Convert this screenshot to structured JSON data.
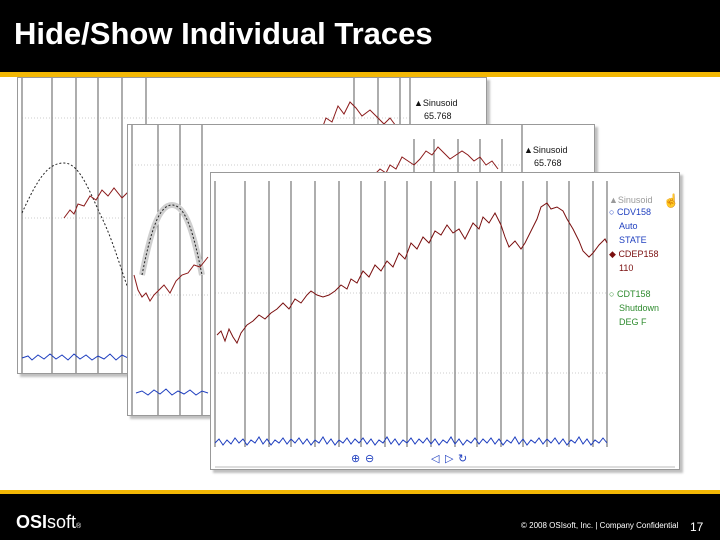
{
  "slide": {
    "title": "Hide/Show Individual Traces",
    "page_number": "17",
    "copyright": "© 2008 OSIsoft, Inc. | Company Confidential",
    "logo": {
      "bold": "OSI",
      "rest": "soft",
      "mark": "®"
    }
  },
  "colors": {
    "accent": "#f2b705",
    "title_bar": "#000000",
    "sinusoid_trace": "#8b1a1a",
    "cdv158_trace": "#1f3fbf",
    "cdep158_trace": "#7a0f0f",
    "cdt158_trace": "#2e8b2e",
    "hidden_trace": "#222222"
  },
  "back_panel": {
    "legend_sinusoid_label": "Sinusoid",
    "legend_sinusoid_value": "65.768"
  },
  "middle_panel": {
    "legend_sinusoid_label": "Sinusoid",
    "legend_sinusoid_value": "65.768"
  },
  "front_panel": {
    "legend": [
      {
        "name": "Sinusoid",
        "value": "",
        "marker": "triangle",
        "state": "hidden"
      },
      {
        "name": "CDV158",
        "value": "Auto",
        "value2": "STATE",
        "marker": "circle",
        "state": "visible"
      },
      {
        "name": "CDEP158",
        "value": "110",
        "marker": "diamond",
        "state": "visible"
      },
      {
        "name": "CDT158",
        "value": "Shutdown",
        "value2": "DEG F",
        "marker": "circle",
        "state": "visible"
      }
    ],
    "toolbar_icons": [
      "zoom-in-icon",
      "zoom-out-icon",
      "scroll-left-icon",
      "scroll-right-icon",
      "refresh-icon"
    ]
  }
}
